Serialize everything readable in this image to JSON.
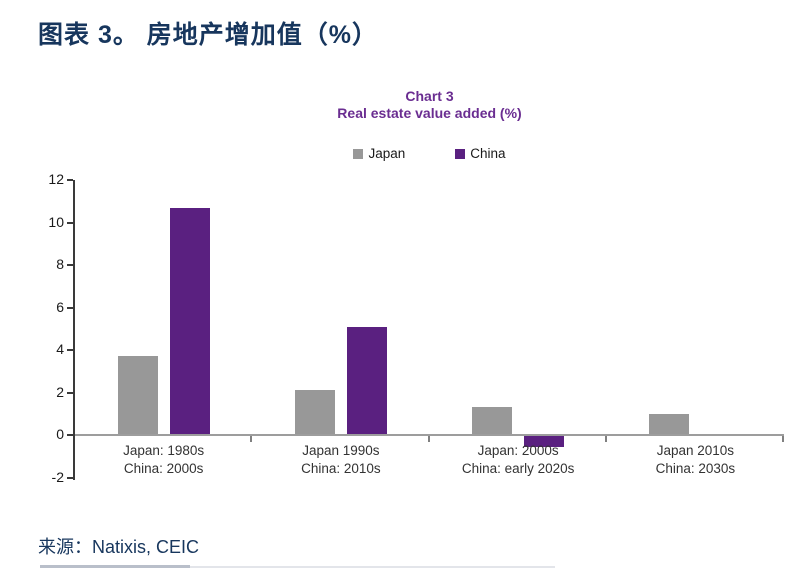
{
  "page": {
    "title": "图表 3。 房地产增加值（%）",
    "source": "来源：Natixis, CEIC"
  },
  "chart_data": {
    "type": "bar",
    "title": "Chart 3",
    "subtitle": "Real estate value added (%)",
    "xlabel": "",
    "ylabel": "",
    "categories": [
      [
        "Japan: 1980s",
        "China: 2000s"
      ],
      [
        "Japan 1990s",
        "China: 2010s"
      ],
      [
        "Japan: 2000s",
        "China: early 2020s"
      ],
      [
        "Japan 2010s",
        "China: 2030s"
      ]
    ],
    "series": [
      {
        "name": "Japan",
        "color": "#989898",
        "values": [
          3.7,
          2.1,
          1.3,
          1.0
        ]
      },
      {
        "name": "China",
        "color": "#5a2080",
        "values": [
          10.7,
          5.1,
          -0.5,
          0
        ]
      }
    ],
    "ylim": [
      -2,
      12
    ],
    "yticks": [
      -2,
      0,
      2,
      4,
      6,
      8,
      10,
      12
    ],
    "legend_position": "top",
    "grid": false
  },
  "colors": {
    "heading_navy": "#17365d",
    "chart_title_purple": "#6a2d91",
    "axis_dark": "#3a3a3a",
    "zero_line_gray": "#9d9d9d",
    "x_tick_gray": "#808080",
    "tick_label": "#1a1a1a",
    "category_label": "#333333"
  }
}
